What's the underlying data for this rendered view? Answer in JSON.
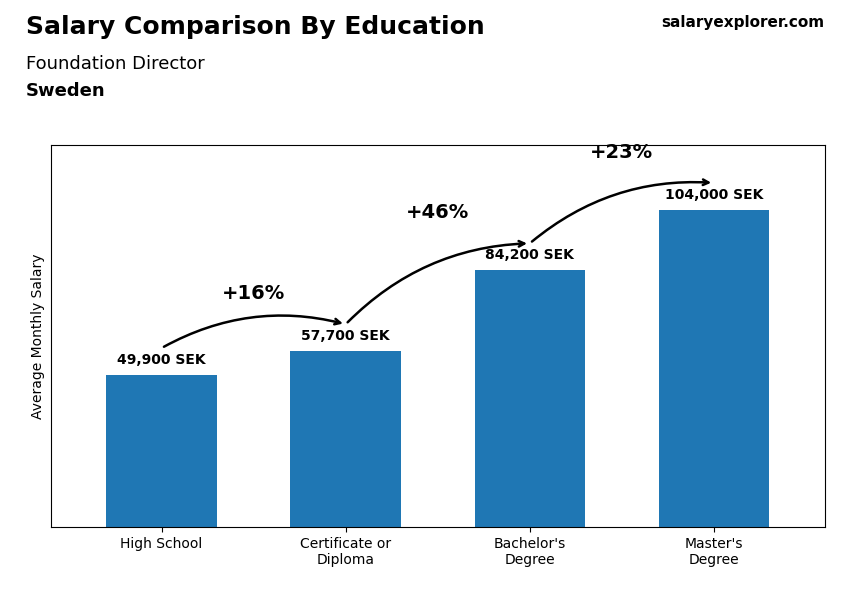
{
  "chart_data": {
    "type": "bar",
    "title": "Salary Comparison By Education",
    "subtitle": "Foundation Director",
    "annotations": [
      "Sweden",
      "salaryexplorer.com"
    ],
    "ylabel": "Average Monthly Salary",
    "categories": [
      "High School",
      "Certificate or\nDiploma",
      "Bachelor's\nDegree",
      "Master's\nDegree"
    ],
    "values": [
      49900,
      57700,
      84200,
      104000
    ],
    "value_labels": [
      "49,900 SEK",
      "57,700 SEK",
      "84,200 SEK",
      "104,000 SEK"
    ],
    "change_labels": [
      "+16%",
      "+46%",
      "+23%"
    ],
    "data_labels": true,
    "tick_labels": "x",
    "ylim": [
      0,
      125000
    ],
    "grid": false
  }
}
